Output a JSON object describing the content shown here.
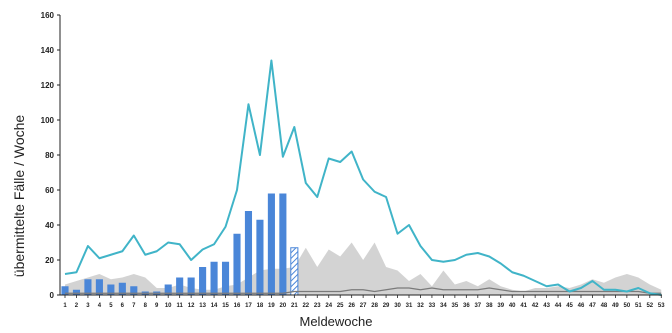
{
  "chart_data": {
    "type": "bar",
    "xlabel": "Meldewoche",
    "ylabel": "übermittelte Fälle / Woche",
    "ylim": [
      0,
      160
    ],
    "yticks": [
      0,
      20,
      40,
      60,
      80,
      100,
      120,
      140,
      160
    ],
    "weeks": [
      1,
      2,
      3,
      4,
      5,
      6,
      7,
      8,
      9,
      10,
      11,
      12,
      13,
      14,
      15,
      16,
      17,
      18,
      19,
      20,
      21,
      22,
      23,
      24,
      25,
      26,
      27,
      28,
      29,
      30,
      31,
      32,
      33,
      34,
      35,
      36,
      37,
      38,
      39,
      40,
      41,
      42,
      43,
      44,
      45,
      46,
      47,
      48,
      49,
      50,
      51,
      52,
      53
    ],
    "xtick_labels": [
      "1",
      "2",
      "3",
      "4",
      "5",
      "6",
      "7",
      "8",
      "9",
      "10",
      "11",
      "12",
      "13",
      "14",
      "15",
      "16",
      "17",
      "18",
      "19",
      "20",
      "21",
      "22",
      "23",
      "24",
      "25",
      "26",
      "27",
      "28",
      "29",
      "30",
      "31",
      "32",
      "33",
      "34",
      "35",
      "36",
      "37",
      "38",
      "39",
      "40",
      "41",
      "42",
      "43",
      "44",
      "45",
      "46",
      "47",
      "48",
      "49",
      "50",
      "51",
      "52",
      "53"
    ],
    "current_year_bars": {
      "color": "#4a86d8",
      "values": [
        5,
        3,
        9,
        9,
        6,
        7,
        5,
        2,
        2,
        6,
        10,
        10,
        16,
        19,
        19,
        35,
        48,
        43,
        58,
        58,
        27
      ],
      "hatched_last": true
    },
    "area_series": {
      "color": "#d3d3d3",
      "values": [
        6,
        8,
        10,
        12,
        9,
        10,
        12,
        10,
        4,
        4,
        6,
        4,
        3,
        3,
        5,
        6,
        10,
        14,
        15,
        15,
        16,
        27,
        16,
        26,
        22,
        30,
        20,
        30,
        16,
        14,
        8,
        12,
        5,
        14,
        6,
        8,
        5,
        9,
        5,
        3,
        2,
        4,
        4,
        5,
        4,
        6,
        9,
        7,
        10,
        12,
        10,
        6,
        3
      ]
    },
    "line_series": {
      "color": "#40b4c8",
      "values": [
        12,
        13,
        28,
        21,
        23,
        25,
        34,
        23,
        25,
        30,
        29,
        20,
        26,
        29,
        39,
        60,
        109,
        80,
        134,
        79,
        96,
        64,
        56,
        78,
        76,
        82,
        66,
        59,
        56,
        35,
        40,
        28,
        20,
        19,
        20,
        23,
        24,
        22,
        18,
        13,
        11,
        8,
        5,
        6,
        2,
        4,
        8,
        3,
        3,
        2,
        4,
        1,
        0
      ]
    },
    "dark_series": {
      "color": "#7a7a7a",
      "values": [
        1,
        1,
        1,
        1,
        1,
        1,
        1,
        1,
        1,
        1,
        1,
        1,
        1,
        1,
        1,
        1,
        1,
        1,
        1,
        1,
        2,
        2,
        2,
        2,
        2,
        3,
        3,
        2,
        3,
        4,
        4,
        3,
        4,
        3,
        3,
        3,
        3,
        4,
        3,
        2,
        2,
        2,
        2,
        2,
        2,
        2,
        2,
        2,
        2,
        2,
        2,
        1,
        1
      ]
    }
  }
}
